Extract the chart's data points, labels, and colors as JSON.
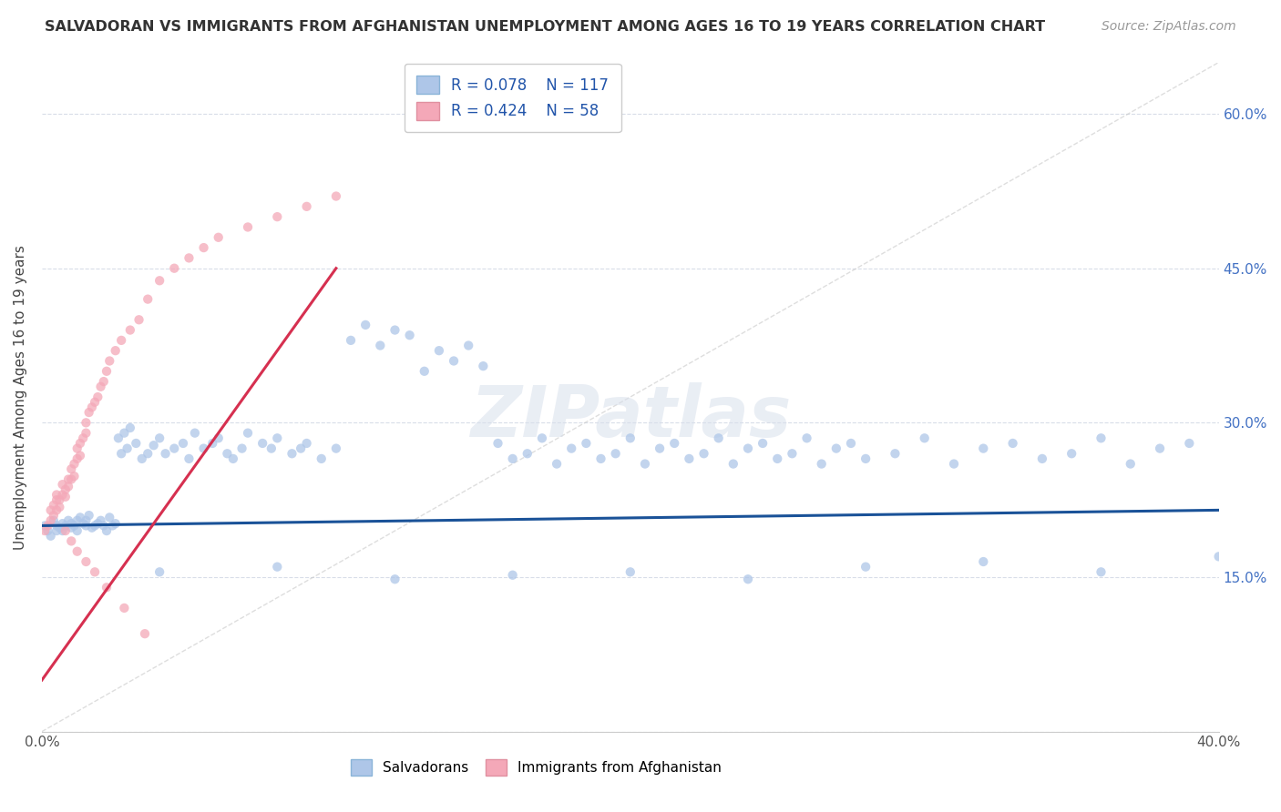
{
  "title": "SALVADORAN VS IMMIGRANTS FROM AFGHANISTAN UNEMPLOYMENT AMONG AGES 16 TO 19 YEARS CORRELATION CHART",
  "source": "Source: ZipAtlas.com",
  "ylabel": "Unemployment Among Ages 16 to 19 years",
  "watermark": "ZIPatlas",
  "blue_R": 0.078,
  "blue_N": 117,
  "pink_R": 0.424,
  "pink_N": 58,
  "blue_color": "#aec6e8",
  "pink_color": "#f4a8b8",
  "blue_line_color": "#1a5298",
  "pink_line_color": "#d63050",
  "ref_line_color": "#c8c8c8",
  "x_max": 0.4,
  "y_max": 0.65,
  "grid_color": "#d8dde8",
  "background_color": "#ffffff",
  "blue_scatter_x": [
    0.001,
    0.002,
    0.003,
    0.004,
    0.005,
    0.005,
    0.006,
    0.007,
    0.007,
    0.008,
    0.009,
    0.01,
    0.01,
    0.011,
    0.012,
    0.012,
    0.013,
    0.014,
    0.015,
    0.015,
    0.016,
    0.017,
    0.018,
    0.019,
    0.02,
    0.021,
    0.022,
    0.023,
    0.024,
    0.025,
    0.026,
    0.027,
    0.028,
    0.029,
    0.03,
    0.032,
    0.034,
    0.036,
    0.038,
    0.04,
    0.042,
    0.045,
    0.048,
    0.05,
    0.052,
    0.055,
    0.058,
    0.06,
    0.063,
    0.065,
    0.068,
    0.07,
    0.075,
    0.078,
    0.08,
    0.085,
    0.088,
    0.09,
    0.095,
    0.1,
    0.105,
    0.11,
    0.115,
    0.12,
    0.125,
    0.13,
    0.135,
    0.14,
    0.145,
    0.15,
    0.155,
    0.16,
    0.165,
    0.17,
    0.175,
    0.18,
    0.185,
    0.19,
    0.195,
    0.2,
    0.205,
    0.21,
    0.215,
    0.22,
    0.225,
    0.23,
    0.235,
    0.24,
    0.245,
    0.25,
    0.255,
    0.26,
    0.265,
    0.27,
    0.275,
    0.28,
    0.29,
    0.3,
    0.31,
    0.32,
    0.33,
    0.34,
    0.35,
    0.36,
    0.37,
    0.38,
    0.39,
    0.04,
    0.08,
    0.12,
    0.16,
    0.2,
    0.24,
    0.28,
    0.32,
    0.36,
    0.4
  ],
  "blue_scatter_y": [
    0.2,
    0.195,
    0.19,
    0.205,
    0.195,
    0.2,
    0.198,
    0.202,
    0.195,
    0.2,
    0.205,
    0.198,
    0.202,
    0.2,
    0.205,
    0.195,
    0.208,
    0.202,
    0.2,
    0.205,
    0.21,
    0.198,
    0.2,
    0.202,
    0.205,
    0.2,
    0.195,
    0.208,
    0.2,
    0.202,
    0.285,
    0.27,
    0.29,
    0.275,
    0.295,
    0.28,
    0.265,
    0.27,
    0.278,
    0.285,
    0.27,
    0.275,
    0.28,
    0.265,
    0.29,
    0.275,
    0.28,
    0.285,
    0.27,
    0.265,
    0.275,
    0.29,
    0.28,
    0.275,
    0.285,
    0.27,
    0.275,
    0.28,
    0.265,
    0.275,
    0.38,
    0.395,
    0.375,
    0.39,
    0.385,
    0.35,
    0.37,
    0.36,
    0.375,
    0.355,
    0.28,
    0.265,
    0.27,
    0.285,
    0.26,
    0.275,
    0.28,
    0.265,
    0.27,
    0.285,
    0.26,
    0.275,
    0.28,
    0.265,
    0.27,
    0.285,
    0.26,
    0.275,
    0.28,
    0.265,
    0.27,
    0.285,
    0.26,
    0.275,
    0.28,
    0.265,
    0.27,
    0.285,
    0.26,
    0.275,
    0.28,
    0.265,
    0.27,
    0.285,
    0.26,
    0.275,
    0.28,
    0.155,
    0.16,
    0.148,
    0.152,
    0.155,
    0.148,
    0.16,
    0.165,
    0.155,
    0.17
  ],
  "pink_scatter_x": [
    0.001,
    0.002,
    0.003,
    0.003,
    0.004,
    0.004,
    0.005,
    0.005,
    0.005,
    0.006,
    0.006,
    0.007,
    0.007,
    0.008,
    0.008,
    0.009,
    0.009,
    0.01,
    0.01,
    0.011,
    0.011,
    0.012,
    0.012,
    0.013,
    0.013,
    0.014,
    0.015,
    0.015,
    0.016,
    0.017,
    0.018,
    0.019,
    0.02,
    0.021,
    0.022,
    0.023,
    0.025,
    0.027,
    0.03,
    0.033,
    0.036,
    0.04,
    0.045,
    0.05,
    0.055,
    0.06,
    0.07,
    0.08,
    0.09,
    0.1,
    0.008,
    0.01,
    0.012,
    0.015,
    0.018,
    0.022,
    0.028,
    0.035
  ],
  "pink_scatter_y": [
    0.195,
    0.2,
    0.205,
    0.215,
    0.21,
    0.22,
    0.215,
    0.225,
    0.23,
    0.218,
    0.225,
    0.23,
    0.24,
    0.228,
    0.235,
    0.245,
    0.238,
    0.245,
    0.255,
    0.248,
    0.26,
    0.265,
    0.275,
    0.268,
    0.28,
    0.285,
    0.29,
    0.3,
    0.31,
    0.315,
    0.32,
    0.325,
    0.335,
    0.34,
    0.35,
    0.36,
    0.37,
    0.38,
    0.39,
    0.4,
    0.42,
    0.438,
    0.45,
    0.46,
    0.47,
    0.48,
    0.49,
    0.5,
    0.51,
    0.52,
    0.195,
    0.185,
    0.175,
    0.165,
    0.155,
    0.14,
    0.12,
    0.095
  ]
}
